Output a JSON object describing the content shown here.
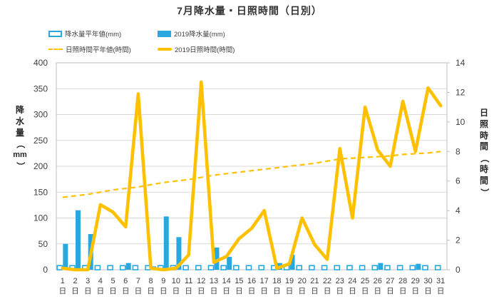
{
  "title": "7月降水量・日照時間（日別）",
  "colors": {
    "blue": "#29A8DF",
    "gold": "#FFC000",
    "grid": "#D9D9D9",
    "border": "#BFBFBF",
    "text": "#404040"
  },
  "legend": [
    {
      "label": "降水量平年値(mm)",
      "swatch": "hollow-bar-swatch"
    },
    {
      "label": "2019降水量(mm)",
      "swatch": "solid-bar-swatch"
    },
    {
      "label": "日照時間平年値(時間)",
      "swatch": "dashed-line-swatch"
    },
    {
      "label": "2019日照時間(時間)",
      "swatch": "solid-line-swatch"
    }
  ],
  "left_axis": {
    "chars": [
      "降",
      "水",
      "量",
      "（",
      "mm",
      "）"
    ],
    "ticks": [
      0,
      50,
      100,
      150,
      200,
      250,
      300,
      350,
      400
    ]
  },
  "right_axis": {
    "chars": [
      "日",
      "照",
      "時",
      "間",
      "（",
      "時",
      "間",
      "）"
    ],
    "ticks": [
      0,
      2,
      4,
      6,
      8,
      10,
      12,
      14
    ]
  },
  "chart_data": {
    "type": "bar+line combo",
    "title": "7月降水量・日照時間（日別）",
    "categories": [
      "1日",
      "2日",
      "3日",
      "4日",
      "5日",
      "6日",
      "7日",
      "8日",
      "9日",
      "10日",
      "11日",
      "12日",
      "13日",
      "14日",
      "15日",
      "16日",
      "17日",
      "18日",
      "19日",
      "20日",
      "21日",
      "22日",
      "23日",
      "24日",
      "25日",
      "26日",
      "27日",
      "28日",
      "29日",
      "30日",
      "31日"
    ],
    "left_ylim": [
      0,
      400
    ],
    "right_ylim": [
      0,
      14
    ],
    "grid": "horizontal",
    "legend_position": "top-left",
    "series": [
      {
        "name": "降水量平年値(mm)",
        "type": "bar",
        "style": "hollow",
        "axis": "left",
        "color": "#29A8DF",
        "values": [
          8,
          8,
          8,
          8,
          8,
          8,
          8,
          8,
          8,
          8,
          8,
          8,
          8,
          8,
          8,
          8,
          8,
          8,
          8,
          8,
          8,
          8,
          8,
          8,
          8,
          8,
          8,
          8,
          8,
          8,
          8
        ]
      },
      {
        "name": "2019降水量(mm)",
        "type": "bar",
        "style": "solid",
        "axis": "left",
        "color": "#29A8DF",
        "values": [
          50,
          115,
          69,
          0,
          0,
          13,
          0,
          6.5,
          103,
          63,
          0,
          0,
          43,
          25,
          0,
          0,
          0,
          13,
          29,
          0,
          0,
          0,
          0,
          0,
          0,
          13,
          0,
          0,
          11.5,
          0,
          0
        ]
      },
      {
        "name": "日照時間平年値(時間)",
        "type": "line",
        "style": "dashed",
        "axis": "right",
        "color": "#FFC000",
        "values": [
          4.9,
          5.0,
          5.1,
          5.25,
          5.4,
          5.5,
          5.6,
          5.75,
          5.9,
          6.0,
          6.1,
          6.25,
          6.4,
          6.5,
          6.6,
          6.7,
          6.8,
          6.9,
          7.0,
          7.1,
          7.2,
          7.35,
          7.5,
          7.55,
          7.6,
          7.65,
          7.7,
          7.8,
          7.85,
          7.9,
          8.0
        ]
      },
      {
        "name": "2019日照時間(時間)",
        "type": "line",
        "style": "solid",
        "axis": "right",
        "color": "#FFC000",
        "values": [
          0.1,
          0,
          0,
          4.4,
          3.9,
          2.9,
          11.9,
          0.1,
          0,
          0.1,
          1.0,
          12.7,
          0.5,
          0.9,
          2.1,
          2.8,
          4.0,
          0.1,
          0.4,
          3.5,
          1.7,
          0.7,
          8.2,
          3.5,
          11.0,
          8.1,
          7.0,
          11.4,
          8.0,
          12.3,
          11.1
        ]
      }
    ]
  }
}
